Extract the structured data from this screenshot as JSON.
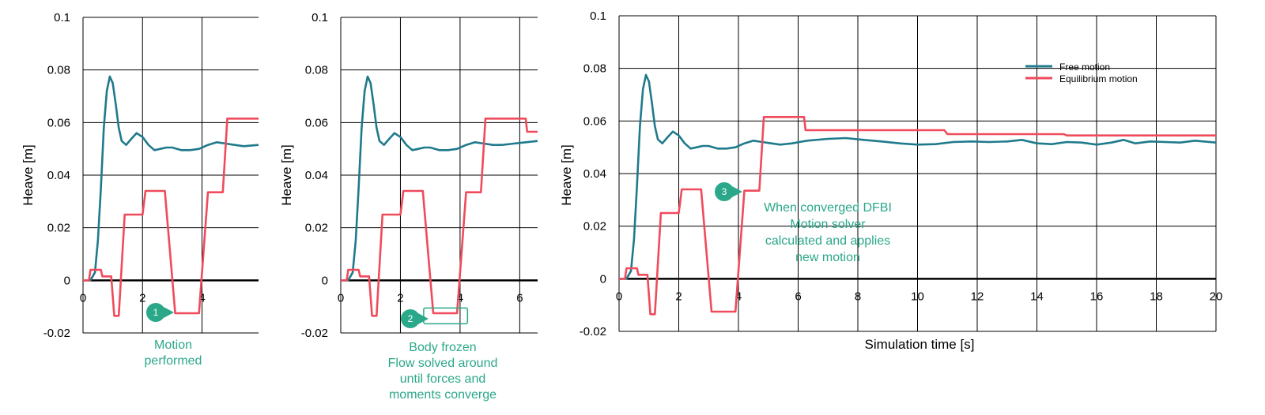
{
  "colors": {
    "free": "#1f7a8c",
    "equilibrium": "#ef4b5c",
    "annotation": "#2aa889",
    "grid": "#000000"
  },
  "chart_data": [
    {
      "type": "line",
      "ylabel": "Heave [m]",
      "xlabel": "",
      "xlim": [
        0,
        5.9
      ],
      "ylim": [
        -0.02,
        0.1
      ],
      "x_ticks": [
        0,
        2,
        4
      ],
      "y_ticks": [
        -0.02,
        0,
        0.02,
        0.04,
        0.06,
        0.08,
        0.1
      ],
      "grid": true,
      "series": [
        {
          "key": "free",
          "points": [
            [
              0,
              0
            ],
            [
              0.25,
              0
            ],
            [
              0.4,
              0.003
            ],
            [
              0.5,
              0.015
            ],
            [
              0.6,
              0.035
            ],
            [
              0.7,
              0.058
            ],
            [
              0.8,
              0.072
            ],
            [
              0.9,
              0.0775
            ],
            [
              1.0,
              0.075
            ],
            [
              1.1,
              0.067
            ],
            [
              1.2,
              0.058
            ],
            [
              1.3,
              0.053
            ],
            [
              1.45,
              0.0515
            ],
            [
              1.6,
              0.0535
            ],
            [
              1.8,
              0.056
            ],
            [
              2.0,
              0.0545
            ],
            [
              2.2,
              0.0515
            ],
            [
              2.4,
              0.0495
            ],
            [
              2.6,
              0.05
            ],
            [
              2.8,
              0.0505
            ],
            [
              3.0,
              0.0505
            ],
            [
              3.3,
              0.0495
            ],
            [
              3.6,
              0.0495
            ],
            [
              3.9,
              0.05
            ],
            [
              4.2,
              0.0515
            ],
            [
              4.5,
              0.0525
            ],
            [
              4.8,
              0.052
            ],
            [
              5.1,
              0.0515
            ],
            [
              5.4,
              0.051
            ],
            [
              5.9,
              0.0515
            ]
          ]
        },
        {
          "key": "equilibrium",
          "points": [
            [
              0,
              0
            ],
            [
              0.2,
              0
            ],
            [
              0.25,
              0.004
            ],
            [
              0.6,
              0.004
            ],
            [
              0.65,
              0.0015
            ],
            [
              0.95,
              0.0015
            ],
            [
              1.05,
              -0.0135
            ],
            [
              1.2,
              -0.0135
            ],
            [
              1.4,
              0.025
            ],
            [
              2.0,
              0.025
            ],
            [
              2.1,
              0.034
            ],
            [
              2.75,
              0.034
            ],
            [
              3.1,
              -0.0125
            ],
            [
              3.9,
              -0.0125
            ],
            [
              4.2,
              0.0335
            ],
            [
              4.7,
              0.0335
            ],
            [
              4.85,
              0.0615
            ],
            [
              5.9,
              0.0615
            ]
          ]
        }
      ],
      "annotations": [
        {
          "badge": "1",
          "lines": [
            "Motion",
            "performed"
          ]
        }
      ]
    },
    {
      "type": "line",
      "ylabel": "Heave [m]",
      "xlabel": "",
      "xlim": [
        0,
        6.6
      ],
      "ylim": [
        -0.02,
        0.1
      ],
      "x_ticks": [
        0,
        2,
        4,
        6
      ],
      "y_ticks": [
        -0.02,
        0,
        0.02,
        0.04,
        0.06,
        0.08,
        0.1
      ],
      "grid": true,
      "series": [
        {
          "key": "free",
          "points": [
            [
              0,
              0
            ],
            [
              0.25,
              0
            ],
            [
              0.4,
              0.003
            ],
            [
              0.5,
              0.015
            ],
            [
              0.6,
              0.035
            ],
            [
              0.7,
              0.058
            ],
            [
              0.8,
              0.072
            ],
            [
              0.9,
              0.0775
            ],
            [
              1.0,
              0.075
            ],
            [
              1.1,
              0.067
            ],
            [
              1.2,
              0.058
            ],
            [
              1.3,
              0.053
            ],
            [
              1.45,
              0.0515
            ],
            [
              1.6,
              0.0535
            ],
            [
              1.8,
              0.056
            ],
            [
              2.0,
              0.0545
            ],
            [
              2.2,
              0.0515
            ],
            [
              2.4,
              0.0495
            ],
            [
              2.6,
              0.05
            ],
            [
              2.8,
              0.0505
            ],
            [
              3.0,
              0.0505
            ],
            [
              3.3,
              0.0495
            ],
            [
              3.6,
              0.0495
            ],
            [
              3.9,
              0.05
            ],
            [
              4.2,
              0.0515
            ],
            [
              4.5,
              0.0525
            ],
            [
              4.8,
              0.052
            ],
            [
              5.1,
              0.0515
            ],
            [
              5.4,
              0.0515
            ],
            [
              5.8,
              0.052
            ],
            [
              6.2,
              0.0525
            ],
            [
              6.6,
              0.053
            ]
          ]
        },
        {
          "key": "equilibrium",
          "points": [
            [
              0,
              0
            ],
            [
              0.2,
              0
            ],
            [
              0.25,
              0.004
            ],
            [
              0.6,
              0.004
            ],
            [
              0.65,
              0.0015
            ],
            [
              0.95,
              0.0015
            ],
            [
              1.05,
              -0.0135
            ],
            [
              1.2,
              -0.0135
            ],
            [
              1.4,
              0.025
            ],
            [
              2.0,
              0.025
            ],
            [
              2.1,
              0.034
            ],
            [
              2.75,
              0.034
            ],
            [
              3.1,
              -0.0125
            ],
            [
              3.9,
              -0.0125
            ],
            [
              4.2,
              0.0335
            ],
            [
              4.7,
              0.0335
            ],
            [
              4.85,
              0.0615
            ],
            [
              6.2,
              0.0615
            ],
            [
              6.25,
              0.0565
            ],
            [
              6.6,
              0.0565
            ]
          ]
        }
      ],
      "annotations": [
        {
          "badge": "2",
          "lines": [
            "Body frozen",
            "Flow solved around",
            "until forces and",
            "moments converge"
          ]
        }
      ]
    },
    {
      "type": "line",
      "ylabel": "Heave [m]",
      "xlabel": "Simulation time [s]",
      "xlim": [
        0,
        20
      ],
      "ylim": [
        -0.02,
        0.1
      ],
      "x_ticks": [
        0,
        2,
        4,
        6,
        8,
        10,
        12,
        14,
        16,
        18,
        20
      ],
      "y_ticks": [
        -0.02,
        0,
        0.02,
        0.04,
        0.06,
        0.08,
        0.1
      ],
      "grid": true,
      "legend": {
        "position": "top-right",
        "entries": [
          {
            "key": "free",
            "label": "Free motion"
          },
          {
            "key": "equilibrium",
            "label": "Equilibrium motion"
          }
        ]
      },
      "series": [
        {
          "key": "free",
          "name": "Free motion",
          "points": [
            [
              0,
              0
            ],
            [
              0.25,
              0
            ],
            [
              0.4,
              0.003
            ],
            [
              0.5,
              0.015
            ],
            [
              0.6,
              0.035
            ],
            [
              0.7,
              0.058
            ],
            [
              0.8,
              0.072
            ],
            [
              0.9,
              0.0775
            ],
            [
              1.0,
              0.075
            ],
            [
              1.1,
              0.067
            ],
            [
              1.2,
              0.058
            ],
            [
              1.3,
              0.053
            ],
            [
              1.45,
              0.0515
            ],
            [
              1.6,
              0.0535
            ],
            [
              1.8,
              0.056
            ],
            [
              2.0,
              0.0545
            ],
            [
              2.2,
              0.0515
            ],
            [
              2.4,
              0.0495
            ],
            [
              2.6,
              0.05
            ],
            [
              2.8,
              0.0505
            ],
            [
              3.0,
              0.0505
            ],
            [
              3.3,
              0.0495
            ],
            [
              3.6,
              0.0495
            ],
            [
              3.9,
              0.05
            ],
            [
              4.2,
              0.0515
            ],
            [
              4.5,
              0.0525
            ],
            [
              4.8,
              0.052
            ],
            [
              5.1,
              0.0515
            ],
            [
              5.4,
              0.051
            ],
            [
              5.8,
              0.0515
            ],
            [
              6.3,
              0.0525
            ],
            [
              7,
              0.0532
            ],
            [
              7.6,
              0.0535
            ],
            [
              8.2,
              0.0528
            ],
            [
              8.8,
              0.0522
            ],
            [
              9.4,
              0.0515
            ],
            [
              10,
              0.051
            ],
            [
              10.6,
              0.0512
            ],
            [
              11.2,
              0.052
            ],
            [
              11.8,
              0.0522
            ],
            [
              12.4,
              0.052
            ],
            [
              13.0,
              0.0522
            ],
            [
              13.5,
              0.0528
            ],
            [
              14.0,
              0.0515
            ],
            [
              14.5,
              0.0512
            ],
            [
              15.0,
              0.052
            ],
            [
              15.5,
              0.0518
            ],
            [
              16.0,
              0.051
            ],
            [
              16.5,
              0.0518
            ],
            [
              16.9,
              0.0528
            ],
            [
              17.3,
              0.0515
            ],
            [
              17.8,
              0.0522
            ],
            [
              18.3,
              0.052
            ],
            [
              18.8,
              0.0518
            ],
            [
              19.3,
              0.0525
            ],
            [
              20,
              0.0518
            ]
          ]
        },
        {
          "key": "equilibrium",
          "name": "Equilibrium motion",
          "points": [
            [
              0,
              0
            ],
            [
              0.2,
              0
            ],
            [
              0.25,
              0.004
            ],
            [
              0.6,
              0.004
            ],
            [
              0.65,
              0.0015
            ],
            [
              0.95,
              0.0015
            ],
            [
              1.05,
              -0.0135
            ],
            [
              1.2,
              -0.0135
            ],
            [
              1.4,
              0.025
            ],
            [
              2.0,
              0.025
            ],
            [
              2.1,
              0.034
            ],
            [
              2.75,
              0.034
            ],
            [
              3.1,
              -0.0125
            ],
            [
              3.9,
              -0.0125
            ],
            [
              4.2,
              0.0335
            ],
            [
              4.7,
              0.0335
            ],
            [
              4.85,
              0.0615
            ],
            [
              6.2,
              0.0615
            ],
            [
              6.25,
              0.0565
            ],
            [
              10.9,
              0.0565
            ],
            [
              11.0,
              0.055
            ],
            [
              14.9,
              0.055
            ],
            [
              15.0,
              0.0545
            ],
            [
              20,
              0.0545
            ]
          ]
        }
      ],
      "annotations": [
        {
          "badge": "3",
          "lines": [
            "When converged DFBI",
            "Motion solver",
            "calculated and applies",
            "new motion"
          ]
        }
      ]
    }
  ]
}
